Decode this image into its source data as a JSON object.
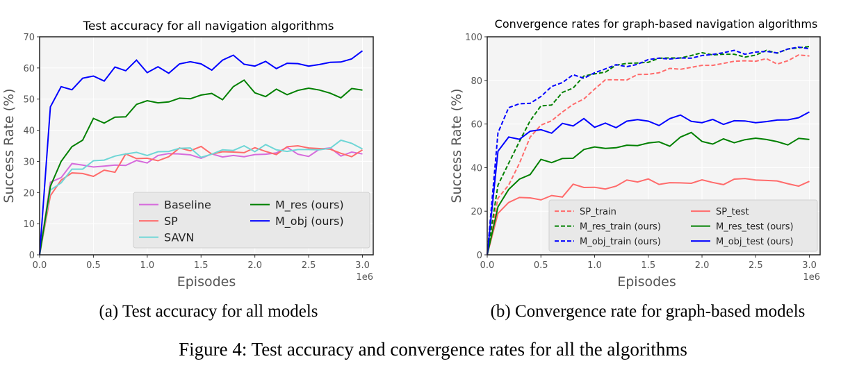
{
  "chart_data": [
    {
      "type": "line",
      "title": "Test accuracy for all navigation algorithms",
      "xlabel": "Episodes",
      "ylabel": "Success Rate (%)",
      "x_scale_label": "1e6",
      "xlim": [
        0,
        3.1
      ],
      "ylim": [
        0,
        70
      ],
      "xticks": [
        "0.0",
        "0.5",
        "1.0",
        "1.5",
        "2.0",
        "2.5",
        "3.0"
      ],
      "yticks": [
        "0",
        "10",
        "20",
        "30",
        "40",
        "50",
        "60",
        "70"
      ],
      "grid": true,
      "legend_placement": "lower-right",
      "legend_columns": 2,
      "x": [
        0,
        0.1,
        0.2,
        0.3,
        0.4,
        0.5,
        0.6,
        0.7,
        0.8,
        0.9,
        1.0,
        1.1,
        1.2,
        1.3,
        1.4,
        1.5,
        1.6,
        1.7,
        1.8,
        1.9,
        2.0,
        2.1,
        2.2,
        2.3,
        2.4,
        2.5,
        2.6,
        2.7,
        2.8,
        2.9,
        3.0
      ],
      "series": [
        {
          "name": "Baseline",
          "color": "#d66bdc",
          "dash": false,
          "values": [
            0,
            23.3,
            24.8,
            29.3,
            28.8,
            28.2,
            28.5,
            28.8,
            28.7,
            30.3,
            29.5,
            31.9,
            32.5,
            32.4,
            32.1,
            31,
            32.4,
            31.4,
            31.9,
            31.5,
            32.2,
            32.3,
            32.7,
            34.5,
            32.3,
            31.6,
            33.9,
            34.3,
            31.7,
            33,
            32.4
          ]
        },
        {
          "name": "SP",
          "color": "#ff6b6b",
          "dash": false,
          "values": [
            0,
            19,
            24,
            26.3,
            26.1,
            25.2,
            27.2,
            26.5,
            32.4,
            30.9,
            31,
            30.2,
            31.5,
            34.3,
            33.4,
            34.8,
            32.3,
            33.1,
            33,
            32.8,
            34.4,
            33.2,
            32.2,
            34.7,
            35,
            34.3,
            34.1,
            33.9,
            32.6,
            31.5,
            33.7
          ]
        },
        {
          "name": "SAVN",
          "color": "#6fd6d6",
          "dash": false,
          "values": [
            0,
            20.8,
            23.1,
            27.5,
            27.5,
            30.2,
            30.4,
            31.7,
            32.4,
            32.9,
            31.9,
            33.1,
            33.2,
            34.2,
            34.3,
            31.3,
            32.3,
            33.7,
            33.5,
            35,
            33.1,
            35.4,
            33.7,
            33.2,
            33.8,
            33.8,
            33.7,
            34.2,
            36.8,
            35.8,
            34
          ]
        },
        {
          "name": "M_res (ours)",
          "color": "#008000",
          "dash": false,
          "values": [
            0,
            22,
            30,
            34.7,
            36.8,
            43.8,
            42.3,
            44.2,
            44.3,
            48.3,
            49.5,
            48.8,
            49.1,
            50.3,
            50.1,
            51.3,
            51.8,
            49.8,
            54,
            56.1,
            52,
            50.8,
            53.2,
            51.4,
            52.8,
            53.5,
            52.9,
            51.9,
            50.4,
            53.4,
            52.9
          ]
        },
        {
          "name": "M_obj (ours)",
          "color": "#0000ff",
          "dash": false,
          "values": [
            0,
            47.5,
            54,
            53,
            56.7,
            57.4,
            55.8,
            60.3,
            59.1,
            62.5,
            58.5,
            60.4,
            58.3,
            61.3,
            62,
            61.3,
            59.3,
            62.5,
            64.1,
            61.2,
            60.6,
            62.1,
            59.8,
            61.5,
            61.4,
            60.6,
            61.1,
            61.8,
            61.9,
            62.9,
            65.5
          ]
        }
      ],
      "legend_order": [
        0,
        1,
        2,
        3,
        4
      ]
    },
    {
      "type": "line",
      "title": "Convergence rates for graph-based navigation algorithms",
      "xlabel": "Episodes",
      "ylabel": "Success Rate (%)",
      "x_scale_label": "1e6",
      "xlim": [
        0,
        3.1
      ],
      "ylim": [
        0,
        100
      ],
      "xticks": [
        "0.0",
        "0.5",
        "1.0",
        "1.5",
        "2.0",
        "2.5",
        "3.0"
      ],
      "yticks": [
        "0",
        "20",
        "40",
        "60",
        "80",
        "100"
      ],
      "grid": true,
      "legend_placement": "lower-right",
      "legend_columns": 2,
      "x": [
        0,
        0.1,
        0.2,
        0.3,
        0.4,
        0.5,
        0.6,
        0.7,
        0.8,
        0.9,
        1.0,
        1.1,
        1.2,
        1.3,
        1.4,
        1.5,
        1.6,
        1.7,
        1.8,
        1.9,
        2.0,
        2.1,
        2.2,
        2.3,
        2.4,
        2.5,
        2.6,
        2.7,
        2.8,
        2.9,
        3.0
      ],
      "series": [
        {
          "name": "SP_train",
          "color": "#ff6b6b",
          "dash": true,
          "values": [
            0,
            26,
            32,
            42,
            54,
            59.5,
            61.5,
            65.5,
            69,
            71.5,
            76,
            80.3,
            80.3,
            80.2,
            82.7,
            82.8,
            83.5,
            85.5,
            85.1,
            86,
            86.9,
            86.9,
            87.8,
            88.8,
            89,
            88.8,
            90,
            87.5,
            89,
            91.7,
            91.2
          ]
        },
        {
          "name": "M_res_train (ours)",
          "color": "#008000",
          "dash": true,
          "values": [
            0,
            32,
            42,
            52,
            61.5,
            68.3,
            68.7,
            74.5,
            76.5,
            82,
            83,
            83.8,
            87,
            87.8,
            88,
            88.3,
            90.2,
            90.3,
            90.3,
            91.4,
            92.7,
            91.7,
            92,
            92,
            90.7,
            91.6,
            93.8,
            92.5,
            94.4,
            95,
            95.5
          ]
        },
        {
          "name": "M_obj_train (ours)",
          "color": "#0000ff",
          "dash": true,
          "values": [
            0,
            56,
            67.5,
            69.3,
            69.5,
            72.6,
            77.2,
            79,
            82.6,
            81,
            83.5,
            85.3,
            87.2,
            86.3,
            87.4,
            89.6,
            90.2,
            89.8,
            90.3,
            90.2,
            91.4,
            91.9,
            92.7,
            93.8,
            92,
            93,
            93.3,
            92.6,
            94.4,
            95.3,
            94.5
          ]
        },
        {
          "name": "SP_test",
          "color": "#ff6b6b",
          "dash": false,
          "values": [
            0,
            19,
            24,
            26.3,
            26.1,
            25.2,
            27.2,
            26.5,
            32.4,
            30.9,
            31,
            30.2,
            31.5,
            34.3,
            33.4,
            34.8,
            32.3,
            33.1,
            33,
            32.8,
            34.4,
            33.2,
            32.2,
            34.7,
            35,
            34.3,
            34.1,
            33.9,
            32.6,
            31.5,
            33.7
          ]
        },
        {
          "name": "M_res_test (ours)",
          "color": "#008000",
          "dash": false,
          "values": [
            0,
            22,
            30,
            34.7,
            36.8,
            43.8,
            42.3,
            44.2,
            44.3,
            48.3,
            49.5,
            48.8,
            49.1,
            50.3,
            50.1,
            51.3,
            51.8,
            49.8,
            54,
            56.1,
            52,
            50.8,
            53.2,
            51.4,
            52.8,
            53.5,
            52.9,
            51.9,
            50.4,
            53.4,
            52.9
          ]
        },
        {
          "name": "M_obj_test (ours)",
          "color": "#0000ff",
          "dash": false,
          "values": [
            0,
            47.5,
            54,
            53,
            56.7,
            57.4,
            55.8,
            60.3,
            59.1,
            62.5,
            58.5,
            60.4,
            58.3,
            61.3,
            62,
            61.3,
            59.3,
            62.5,
            64.1,
            61.2,
            60.6,
            62.1,
            59.8,
            61.5,
            61.4,
            60.6,
            61.1,
            61.8,
            61.9,
            62.9,
            65.5
          ]
        }
      ],
      "legend_order": [
        0,
        1,
        2,
        3,
        4,
        5
      ]
    }
  ],
  "captions": {
    "a": "(a) Test accuracy for all models",
    "b": "(b) Convergence rate for graph-based models",
    "figure": "Figure 4: Test accuracy and convergence rates for all the algorithms"
  }
}
